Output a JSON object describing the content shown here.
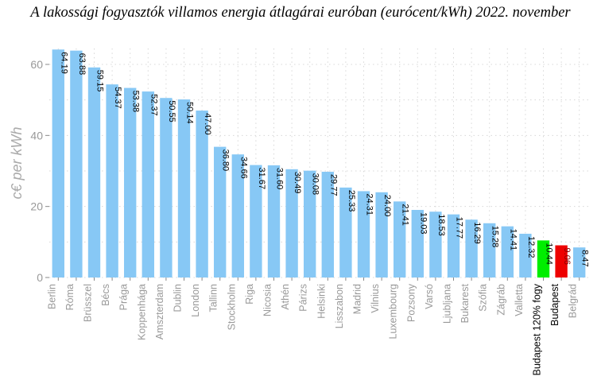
{
  "chart_data": {
    "type": "bar",
    "title": "A lakossági fogyasztók villamos energia átlagárai euróban (eurócent/kWh) 2022. november",
    "xlabel": "",
    "ylabel": "c€ per kWh",
    "ylim": [
      0,
      64.5
    ],
    "yticks": [
      0,
      20,
      40,
      60
    ],
    "grid": true,
    "categories": [
      "Berlin",
      "Róma",
      "Brüsszel",
      "Bécs",
      "Prága",
      "Koppenhága",
      "Amszterdam",
      "Dublin",
      "London",
      "Tallinn",
      "Stockholm",
      "Riga",
      "Nicosia",
      "Athén",
      "Párizs",
      "Helsinki",
      "Lisszabon",
      "Madrid",
      "Vilnius",
      "Luxembourg",
      "Pozsony",
      "Varsó",
      "Ljubljana",
      "Bukarest",
      "Szófia",
      "Zágráb",
      "Valletta",
      "Budapest 120% fogy",
      "Budapest",
      "Belgrád"
    ],
    "values": [
      64.19,
      63.88,
      59.15,
      54.37,
      53.38,
      52.37,
      50.55,
      50.14,
      47.0,
      36.8,
      34.66,
      31.67,
      31.6,
      30.49,
      30.08,
      29.77,
      25.33,
      24.31,
      24.0,
      21.41,
      19.03,
      18.53,
      17.77,
      16.29,
      15.28,
      14.41,
      12.32,
      10.44,
      9.06,
      8.47
    ],
    "data_labels": [
      "64.19",
      "63.88",
      "59.15",
      "54.37",
      "53.38",
      "52.37",
      "50.55",
      "50.14",
      "47.00",
      "36.80",
      "34.66",
      "31.67",
      "31.60",
      "30.49",
      "30.08",
      "29.77",
      "25.33",
      "24.31",
      "24.00",
      "21.41",
      "19.03",
      "18.53",
      "17.77",
      "16.29",
      "15.28",
      "14.41",
      "12.32",
      "10.44",
      "9.06",
      "8.47"
    ],
    "colors": {
      "default": "#87c8f5",
      "highlight": {
        "Budapest 120% fogy": "#00ee00",
        "Budapest": "#ee0000"
      },
      "highlight_label_color": "#000000",
      "label_color": "#999999"
    }
  }
}
